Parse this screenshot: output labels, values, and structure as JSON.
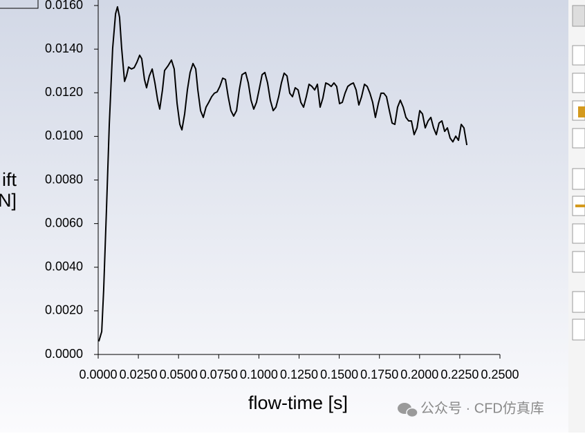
{
  "chart_data": {
    "type": "line",
    "xlabel": "flow-time [s]",
    "ylabel_lines": [
      "ift",
      "N]"
    ],
    "watermark": "公众号 · CFD仿真库",
    "color": "#000000",
    "xlim": [
      0,
      0.25
    ],
    "ylim": [
      0,
      0.016
    ],
    "xticks": [
      {
        "value": 0,
        "label": "0.0000"
      },
      {
        "value": 0.025,
        "label": "0.0250"
      },
      {
        "value": 0.05,
        "label": "0.0500"
      },
      {
        "value": 0.075,
        "label": "0.0750"
      },
      {
        "value": 0.1,
        "label": "0.1000"
      },
      {
        "value": 0.125,
        "label": "0.1250"
      },
      {
        "value": 0.15,
        "label": "0.1500"
      },
      {
        "value": 0.175,
        "label": "0.1750"
      },
      {
        "value": 0.2,
        "label": "0.2000"
      },
      {
        "value": 0.225,
        "label": "0.2250"
      },
      {
        "value": 0.25,
        "label": "0.2500"
      }
    ],
    "yticks": [
      {
        "value": 0,
        "label": "0.0000"
      },
      {
        "value": 0.002,
        "label": "0.0020"
      },
      {
        "value": 0.004,
        "label": "0.0040"
      },
      {
        "value": 0.006,
        "label": "0.0060"
      },
      {
        "value": 0.008,
        "label": "0.0080"
      },
      {
        "value": 0.01,
        "label": "0.0100"
      },
      {
        "value": 0.012,
        "label": "0.0120"
      },
      {
        "value": 0.014,
        "label": "0.0140"
      },
      {
        "value": 0.016,
        "label": "0.0160"
      }
    ],
    "x": [
      0.0004,
      0.0022,
      0.0034,
      0.0052,
      0.0069,
      0.009,
      0.0108,
      0.012,
      0.0133,
      0.0146,
      0.0164,
      0.0176,
      0.0189,
      0.0207,
      0.0224,
      0.0241,
      0.0258,
      0.0271,
      0.0288,
      0.0301,
      0.0318,
      0.0336,
      0.0353,
      0.037,
      0.0383,
      0.04,
      0.0413,
      0.0435,
      0.0456,
      0.0473,
      0.0491,
      0.0508,
      0.0521,
      0.0538,
      0.0555,
      0.0572,
      0.059,
      0.0607,
      0.062,
      0.0637,
      0.0654,
      0.0671,
      0.0688,
      0.0706,
      0.0723,
      0.074,
      0.0757,
      0.0775,
      0.0792,
      0.0809,
      0.0826,
      0.0843,
      0.0861,
      0.0878,
      0.0895,
      0.0917,
      0.0934,
      0.0951,
      0.0968,
      0.0985,
      0.1003,
      0.102,
      0.1037,
      0.1054,
      0.1071,
      0.1089,
      0.1106,
      0.1123,
      0.114,
      0.1157,
      0.1175,
      0.1192,
      0.1209,
      0.1226,
      0.1244,
      0.1261,
      0.1278,
      0.1295,
      0.1312,
      0.133,
      0.1347,
      0.1364,
      0.1381,
      0.1398,
      0.1416,
      0.1433,
      0.145,
      0.1467,
      0.1484,
      0.1502,
      0.1519,
      0.1536,
      0.1553,
      0.1571,
      0.1588,
      0.1605,
      0.1622,
      0.1639,
      0.1657,
      0.1674,
      0.1691,
      0.1708,
      0.1725,
      0.1743,
      0.176,
      0.1777,
      0.1794,
      0.1812,
      0.1829,
      0.1846,
      0.1863,
      0.188,
      0.1898,
      0.1915,
      0.1932,
      0.1949,
      0.1966,
      0.1984,
      0.2001,
      0.2018,
      0.2035,
      0.2053,
      0.207,
      0.2087,
      0.2104,
      0.2121,
      0.2139,
      0.2156,
      0.2173,
      0.219,
      0.2207,
      0.2225,
      0.2242,
      0.2259,
      0.2276,
      0.2294
    ],
    "values": [
      0.0006,
      0.00105,
      0.00295,
      0.00675,
      0.01055,
      0.01404,
      0.01562,
      0.01594,
      0.01546,
      0.01404,
      0.01252,
      0.01277,
      0.01318,
      0.01309,
      0.01315,
      0.0134,
      0.01372,
      0.01356,
      0.01261,
      0.01223,
      0.01277,
      0.01309,
      0.01245,
      0.01166,
      0.01125,
      0.01213,
      0.01302,
      0.01324,
      0.0135,
      0.01309,
      0.0115,
      0.01055,
      0.0103,
      0.01103,
      0.01213,
      0.01293,
      0.01334,
      0.01309,
      0.01213,
      0.01118,
      0.01087,
      0.01134,
      0.01156,
      0.01182,
      0.01198,
      0.01204,
      0.01229,
      0.01267,
      0.01261,
      0.01182,
      0.01118,
      0.01093,
      0.01118,
      0.01213,
      0.01283,
      0.01293,
      0.01245,
      0.01166,
      0.01125,
      0.01156,
      0.0122,
      0.01283,
      0.01293,
      0.01245,
      0.01166,
      0.01118,
      0.01134,
      0.01182,
      0.01245,
      0.0129,
      0.01277,
      0.01198,
      0.01182,
      0.01223,
      0.01213,
      0.01156,
      0.01134,
      0.01182,
      0.01239,
      0.01229,
      0.01213,
      0.01239,
      0.01134,
      0.01175,
      0.01245,
      0.01239,
      0.01229,
      0.01245,
      0.01229,
      0.0115,
      0.01156,
      0.01198,
      0.01229,
      0.01239,
      0.01245,
      0.01213,
      0.01144,
      0.01182,
      0.01239,
      0.01229,
      0.01198,
      0.01156,
      0.01087,
      0.0115,
      0.01198,
      0.01198,
      0.01182,
      0.01118,
      0.01061,
      0.01055,
      0.01134,
      0.01166,
      0.01134,
      0.01087,
      0.01071,
      0.01071,
      0.01008,
      0.01039,
      0.01118,
      0.01103,
      0.01039,
      0.01071,
      0.01087,
      0.01039,
      0.01008,
      0.01061,
      0.01071,
      0.01023,
      0.01039,
      0.00992,
      0.00975,
      0.01001,
      0.00982,
      0.01055,
      0.01039,
      0.0096
    ]
  }
}
